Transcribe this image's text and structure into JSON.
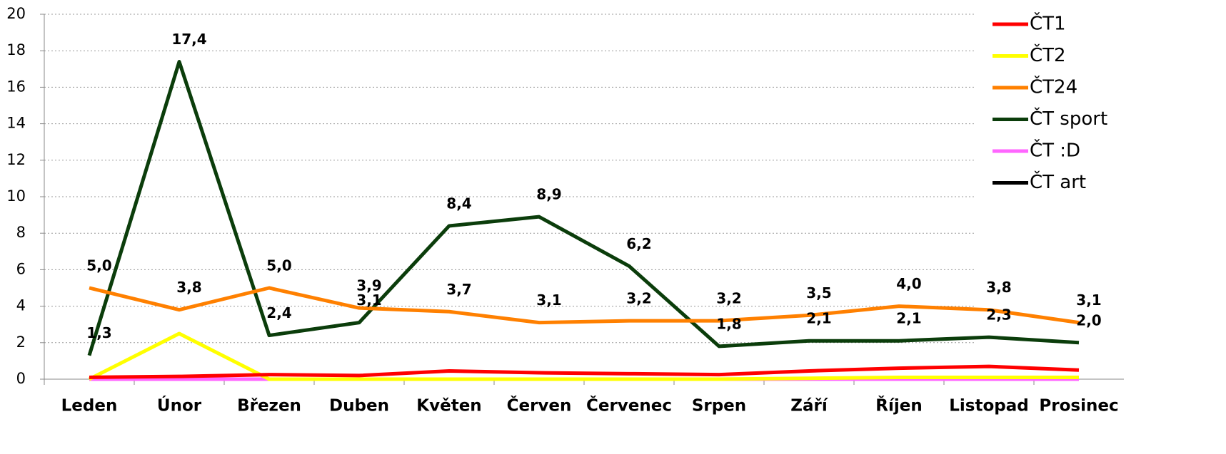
{
  "chart_data": {
    "type": "line",
    "categories": [
      "Leden",
      "Únor",
      "Březen",
      "Duben",
      "Květen",
      "Červen",
      "Červenec",
      "Srpen",
      "Září",
      "Říjen",
      "Listopad",
      "Prosinec"
    ],
    "series": [
      {
        "name": "ČT1",
        "color": "#ff0000",
        "values": [
          0.1,
          0.15,
          0.25,
          0.2,
          0.45,
          0.35,
          0.3,
          0.25,
          0.45,
          0.6,
          0.7,
          0.5
        ]
      },
      {
        "name": "ČT2",
        "color": "#ffff00",
        "values": [
          0,
          2.5,
          0,
          0,
          0,
          0,
          0,
          0,
          0.05,
          0.1,
          0.1,
          0.1
        ]
      },
      {
        "name": "ČT24",
        "color": "#ff8000",
        "values": [
          5.0,
          3.8,
          5.0,
          3.9,
          3.7,
          3.1,
          3.2,
          3.2,
          3.5,
          4.0,
          3.8,
          3.1
        ],
        "value_labels": [
          "5,0",
          "3,8",
          "5,0",
          "3,9",
          "3,7",
          "3,1",
          "3,2",
          "3,2",
          "3,5",
          "4,0",
          "3,8",
          "3,1"
        ]
      },
      {
        "name": "ČT sport",
        "color": "#0b3d0b",
        "values": [
          1.3,
          17.4,
          2.4,
          3.1,
          8.4,
          8.9,
          6.2,
          1.8,
          2.1,
          2.1,
          2.3,
          2.0
        ],
        "value_labels": [
          "1,3",
          "17,4",
          "2,4",
          "3,1",
          "8,4",
          "8,9",
          "6,2",
          "1,8",
          "2,1",
          "2,1",
          "2,3",
          "2,0"
        ]
      },
      {
        "name": "ČT :D",
        "color": "#ff66ff",
        "values": [
          0,
          0,
          0,
          0,
          0,
          0,
          0,
          0,
          0,
          0,
          0,
          0
        ]
      },
      {
        "name": "ČT art",
        "color": "#000000",
        "values": [
          0,
          0,
          0,
          0,
          0,
          0,
          0,
          0,
          0,
          0,
          0,
          0
        ]
      }
    ],
    "ylim": [
      0,
      20
    ],
    "yticks": [
      0,
      2,
      4,
      6,
      8,
      10,
      12,
      14,
      16,
      18,
      20
    ],
    "grid": true,
    "legend": "top-right"
  }
}
